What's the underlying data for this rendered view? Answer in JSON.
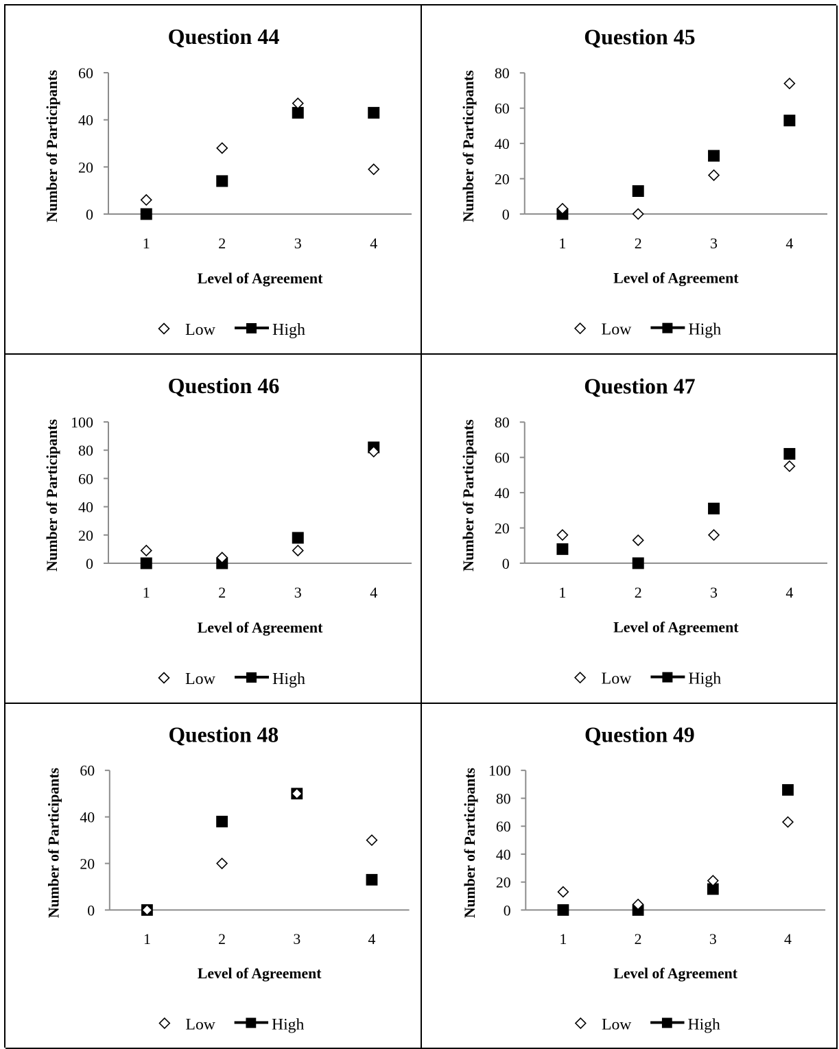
{
  "legend": {
    "low_label": "Low",
    "high_label": "High"
  },
  "chart_data": [
    {
      "type": "scatter",
      "title": "Question 44",
      "xlabel": "Level of Agreement",
      "ylabel": "Number of Participants",
      "x": [
        1,
        2,
        3,
        4
      ],
      "ylim": [
        0,
        60
      ],
      "yticks": [
        0,
        20,
        40,
        60
      ],
      "legend_position": "bottom",
      "grid": false,
      "series": [
        {
          "name": "Low",
          "marker": "open-diamond",
          "values": [
            6,
            28,
            47,
            19
          ]
        },
        {
          "name": "High",
          "marker": "filled-square",
          "values": [
            0,
            14,
            43,
            43
          ]
        }
      ]
    },
    {
      "type": "scatter",
      "title": "Question 45",
      "xlabel": "Level of Agreement",
      "ylabel": "Number of Participants",
      "x": [
        1,
        2,
        3,
        4
      ],
      "ylim": [
        0,
        80
      ],
      "yticks": [
        0,
        20,
        40,
        60,
        80
      ],
      "legend_position": "bottom",
      "grid": false,
      "series": [
        {
          "name": "Low",
          "marker": "open-diamond",
          "values": [
            3,
            0,
            22,
            74
          ]
        },
        {
          "name": "High",
          "marker": "filled-square",
          "values": [
            0,
            13,
            33,
            53
          ]
        }
      ]
    },
    {
      "type": "scatter",
      "title": "Question 46",
      "xlabel": "Level of Agreement",
      "ylabel": "Number of Participants",
      "x": [
        1,
        2,
        3,
        4
      ],
      "ylim": [
        0,
        100
      ],
      "yticks": [
        0,
        20,
        40,
        60,
        80,
        100
      ],
      "legend_position": "bottom",
      "grid": false,
      "series": [
        {
          "name": "Low",
          "marker": "open-diamond",
          "values": [
            9,
            4,
            9,
            79
          ]
        },
        {
          "name": "High",
          "marker": "filled-square",
          "values": [
            0,
            0,
            18,
            82
          ]
        }
      ]
    },
    {
      "type": "scatter",
      "title": "Question 47",
      "xlabel": "Level of Agreement",
      "ylabel": "Number of Participants",
      "x": [
        1,
        2,
        3,
        4
      ],
      "ylim": [
        0,
        80
      ],
      "yticks": [
        0,
        20,
        40,
        60,
        80
      ],
      "legend_position": "bottom",
      "grid": false,
      "series": [
        {
          "name": "Low",
          "marker": "open-diamond",
          "values": [
            16,
            13,
            16,
            55
          ]
        },
        {
          "name": "High",
          "marker": "filled-square",
          "values": [
            8,
            0,
            31,
            62
          ]
        }
      ]
    },
    {
      "type": "scatter",
      "title": "Question 48",
      "xlabel": "Level of Agreement",
      "ylabel": "Number of Participants",
      "x": [
        1,
        2,
        3,
        4
      ],
      "ylim": [
        0,
        60
      ],
      "yticks": [
        0,
        20,
        40,
        60
      ],
      "legend_position": "bottom",
      "grid": false,
      "series": [
        {
          "name": "Low",
          "marker": "open-diamond",
          "values": [
            0,
            20,
            50,
            30
          ]
        },
        {
          "name": "High",
          "marker": "filled-square",
          "values": [
            0,
            38,
            50,
            13
          ]
        }
      ]
    },
    {
      "type": "scatter",
      "title": "Question 49",
      "xlabel": "Level of Agreement",
      "ylabel": "Number of Participants",
      "x": [
        1,
        2,
        3,
        4
      ],
      "ylim": [
        0,
        100
      ],
      "yticks": [
        0,
        20,
        40,
        60,
        80,
        100
      ],
      "legend_position": "bottom",
      "grid": false,
      "series": [
        {
          "name": "Low",
          "marker": "open-diamond",
          "values": [
            13,
            4,
            21,
            63
          ]
        },
        {
          "name": "High",
          "marker": "filled-square",
          "values": [
            0,
            0,
            15,
            86
          ]
        }
      ]
    }
  ]
}
